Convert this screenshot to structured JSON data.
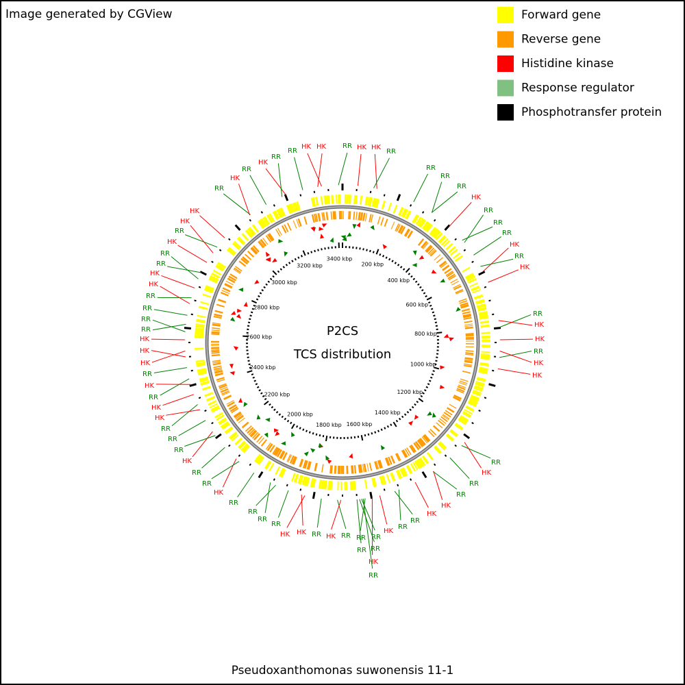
{
  "header": "Image generated by CGView",
  "legend": [
    "Forward gene",
    "Reverse gene",
    "Histidine kinase",
    "Response regulator",
    "Phosphotransfer protein"
  ],
  "title": "P2CS",
  "subtitle": "TCS distribution",
  "footer": "Pseudoxanthomonas suwonensis 11-1",
  "scale_labels": [
    "200 kbp",
    "400 kbp",
    "600 kbp",
    "800 kbp",
    "1000 kbp",
    "1200 kbp",
    "1400 kbp",
    "1600 kbp",
    "1800 kbp",
    "2000 kbp",
    "2200 kbp",
    "2400 kbp",
    "2600 kbp",
    "2800 kbp",
    "3000 kbp",
    "3200 kbp",
    "3400 kbp"
  ],
  "gene_labels": [
    "RR",
    "HK",
    "HK",
    "RR",
    "RR",
    "RR",
    "RR",
    "HK",
    "RR",
    "RR",
    "RR",
    "HK",
    "RR",
    "HK",
    "RR",
    "HK",
    "HK",
    "RR",
    "HK",
    "HK",
    "RR",
    "HK",
    "RR",
    "RR",
    "HK",
    "HK",
    "RR",
    "RR",
    "HK",
    "RR",
    "RR",
    "RR",
    "RR",
    "HK",
    "RR",
    "RR",
    "HK",
    "RR",
    "HK",
    "HK",
    "RR",
    "RR",
    "RR",
    "RR",
    "HK",
    "RR",
    "RR",
    "HK",
    "RR",
    "RR",
    "RR",
    "HK",
    "HK",
    "RR",
    "HK",
    "RR",
    "HK",
    "HK",
    "HK",
    "RR",
    "RR",
    "RR",
    "RR",
    "HK",
    "HK",
    "RR",
    "RR",
    "HK",
    "RR",
    "HK",
    "HK",
    "RR",
    "HK",
    "RR",
    "HK",
    "RR",
    "RR",
    "HK",
    "HK"
  ]
}
